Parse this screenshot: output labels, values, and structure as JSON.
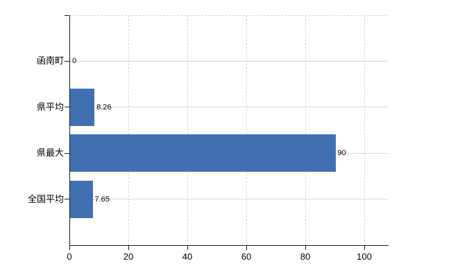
{
  "chart_data": {
    "type": "bar",
    "orientation": "horizontal",
    "title": "",
    "xlabel": "",
    "ylabel": "",
    "categories": [
      "函南町",
      "県平均",
      "県最大",
      "全国平均"
    ],
    "values": [
      0,
      8.26,
      90,
      7.65
    ],
    "value_labels": [
      "0",
      "8.26",
      "90",
      "7.65"
    ],
    "x_ticks": [
      0,
      20,
      40,
      60,
      80,
      100
    ],
    "xlim": [
      0,
      108
    ],
    "grid": true,
    "legend": false,
    "colors": {
      "bar": "#4170b2",
      "grid": "#d4d4d4",
      "axis": "#1a1a1a",
      "text": "#000000",
      "background": "#ffffff"
    }
  }
}
